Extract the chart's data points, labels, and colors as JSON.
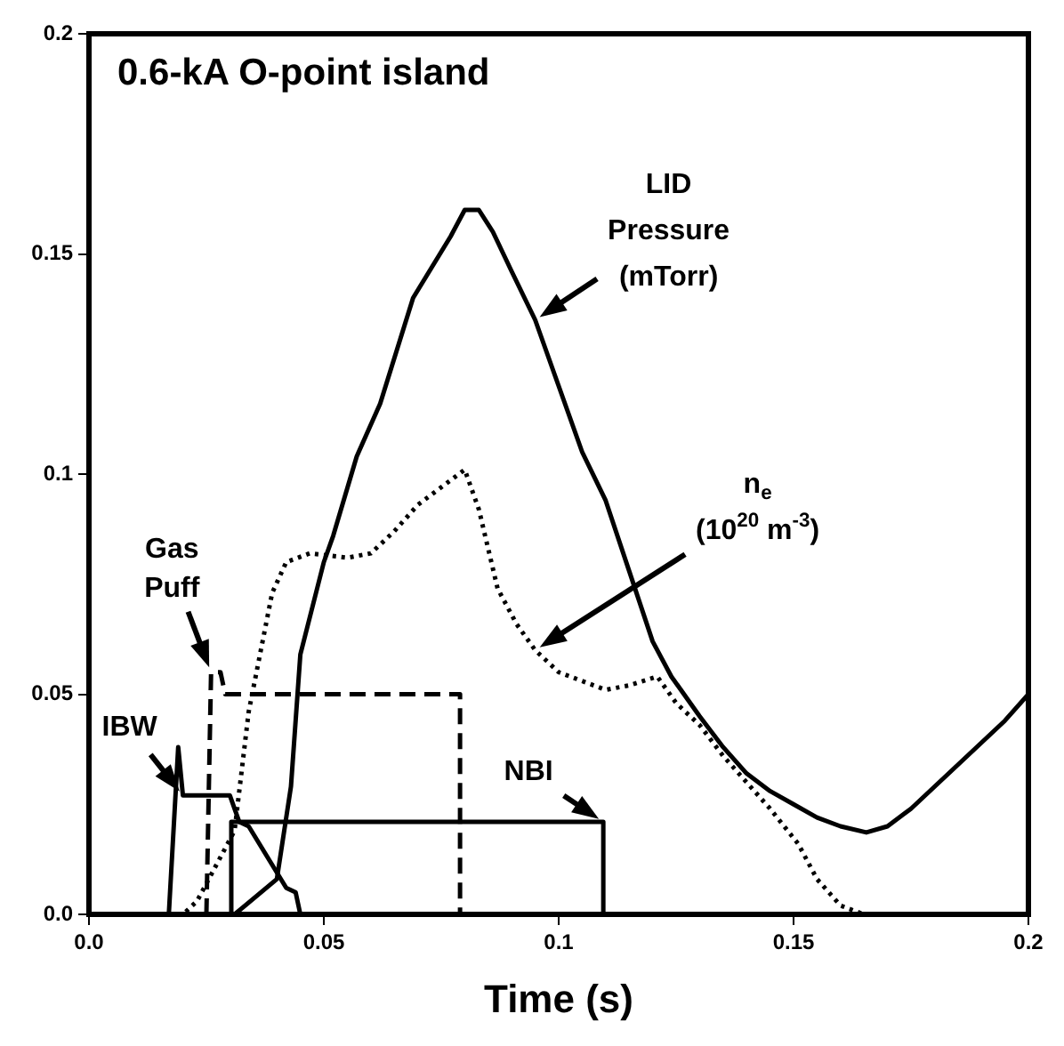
{
  "chart_data": {
    "type": "line",
    "title": "0.6-kA O-point island",
    "xlabel": "Time (s)",
    "xlim": [
      0,
      0.2
    ],
    "ylim": [
      0,
      0.2
    ],
    "xticks": [
      {
        "value": 0,
        "label": "0.0"
      },
      0.05,
      0.1,
      0.15,
      0.2
    ],
    "yticks": [
      {
        "value": 0,
        "label": "0.0"
      },
      0.05,
      0.1,
      0.15,
      0.2
    ],
    "grid": false,
    "legend": false,
    "marker": "none",
    "series": [
      {
        "name": "LID Pressure (mTorr)",
        "color": "#000000",
        "line_style": "solid",
        "x": [
          0.031,
          0.04,
          0.043,
          0.045,
          0.05,
          0.052,
          0.057,
          0.062,
          0.069,
          0.077,
          0.08,
          0.083,
          0.086,
          0.09,
          0.095,
          0.1,
          0.105,
          0.11,
          0.115,
          0.12,
          0.124,
          0.13,
          0.135,
          0.14,
          0.145,
          0.15,
          0.155,
          0.16,
          0.1655,
          0.17,
          0.175,
          0.18,
          0.185,
          0.19,
          0.195,
          0.2
        ],
        "values": [
          0,
          0.008,
          0.029,
          0.059,
          0.08,
          0.086,
          0.104,
          0.116,
          0.14,
          0.154,
          0.16,
          0.16,
          0.155,
          0.146,
          0.135,
          0.12,
          0.105,
          0.094,
          0.078,
          0.062,
          0.054,
          0.045,
          0.038,
          0.032,
          0.028,
          0.025,
          0.022,
          0.02,
          0.0186,
          0.02,
          0.024,
          0.029,
          0.034,
          0.039,
          0.044,
          0.05
        ]
      },
      {
        "name": "n$_{e}$ (10$^{20}$ m$^{-3}$)",
        "color": "#000000",
        "line_style": "dotted",
        "x": [
          0,
          0.02,
          0.023,
          0.031,
          0.034,
          0.039,
          0.042,
          0.047,
          0.055,
          0.06,
          0.065,
          0.07,
          0.075,
          0.08,
          0.083,
          0.087,
          0.091,
          0.095,
          0.1,
          0.105,
          0.11,
          0.115,
          0.121,
          0.125,
          0.13,
          0.135,
          0.14,
          0.145,
          0.151,
          0.155,
          0.16,
          0.165,
          0.2
        ],
        "values": [
          0,
          0,
          0.003,
          0.019,
          0.046,
          0.073,
          0.08,
          0.082,
          0.081,
          0.082,
          0.087,
          0.093,
          0.097,
          0.101,
          0.092,
          0.074,
          0.066,
          0.06,
          0.055,
          0.053,
          0.051,
          0.052,
          0.054,
          0.048,
          0.043,
          0.036,
          0.03,
          0.024,
          0.016,
          0.008,
          0.002,
          0,
          0
        ]
      },
      {
        "name": "Gas Puff",
        "color": "#000000",
        "line_style": "dashed",
        "x": [
          0.025,
          0.026,
          0.028,
          0.029,
          0.079,
          0.079
        ],
        "values": [
          0,
          0.055,
          0.055,
          0.05,
          0.05,
          0
        ]
      },
      {
        "name": "IBW",
        "color": "#000000",
        "line_style": "solid",
        "x": [
          0.017,
          0.019,
          0.02,
          0.03,
          0.032,
          0.034,
          0.042,
          0.044,
          0.045
        ],
        "values": [
          0,
          0.038,
          0.027,
          0.027,
          0.021,
          0.02,
          0.006,
          0.005,
          0
        ]
      },
      {
        "name": "NBI",
        "color": "#000000",
        "line_style": "solid",
        "x": [
          0.0303,
          0.0303,
          0.1095,
          0.1095
        ],
        "values": [
          0,
          0.021,
          0.021,
          0
        ]
      }
    ]
  }
}
